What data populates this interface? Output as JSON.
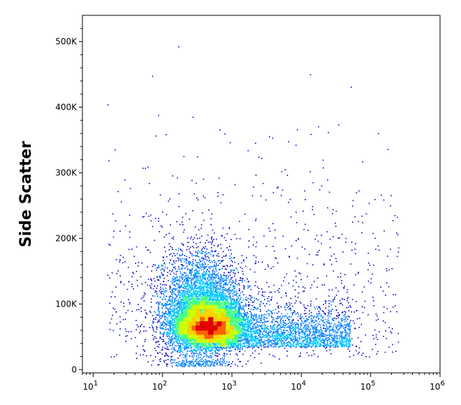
{
  "chart_data": {
    "type": "scatter",
    "title": "",
    "xlabel": "",
    "ylabel": "Side Scatter",
    "x_scale": "log",
    "xlim": [
      7,
      1000000
    ],
    "ylim": [
      -5000,
      540000
    ],
    "grid": false,
    "legend": "none",
    "x_ticks": [
      {
        "value": 10,
        "base": "10",
        "exp": "1"
      },
      {
        "value": 100,
        "base": "10",
        "exp": "2"
      },
      {
        "value": 1000,
        "base": "10",
        "exp": "3"
      },
      {
        "value": 10000,
        "base": "10",
        "exp": "4"
      },
      {
        "value": 100000,
        "base": "10",
        "exp": "5"
      },
      {
        "value": 1000000,
        "base": "10",
        "exp": "6"
      }
    ],
    "y_ticks": [
      {
        "value": 0,
        "label": "0"
      },
      {
        "value": 100000,
        "label": "100K"
      },
      {
        "value": 200000,
        "label": "200K"
      },
      {
        "value": 300000,
        "label": "300K"
      },
      {
        "value": 400000,
        "label": "400K"
      },
      {
        "value": 500000,
        "label": "500K"
      }
    ],
    "density_colors": [
      "#0000cc",
      "#0080ff",
      "#00c8ff",
      "#40ff80",
      "#c8ff00",
      "#ffd000",
      "#ff6000",
      "#e00000"
    ],
    "clusters": [
      {
        "x": 500,
        "y": 50000,
        "weight": 0.5
      },
      {
        "x": 400,
        "y": 90000,
        "weight": 0.35
      },
      {
        "x": 5000,
        "y": 40000,
        "weight": 0.15
      }
    ]
  }
}
